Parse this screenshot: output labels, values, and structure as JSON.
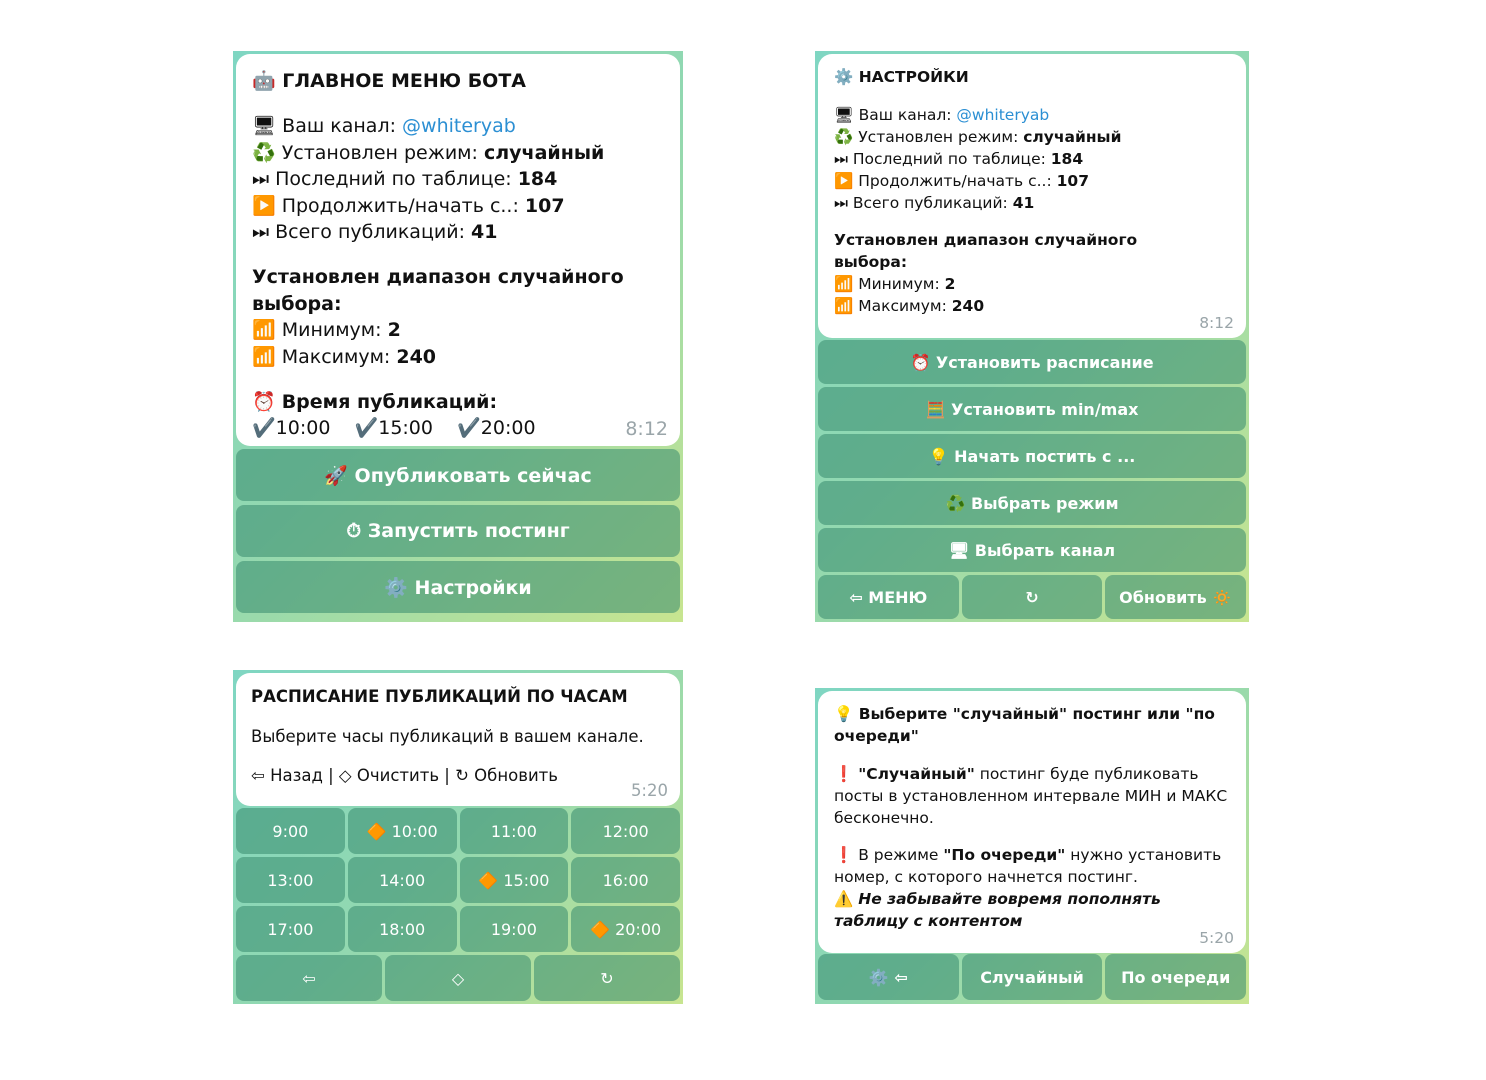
{
  "panels": [
    {
      "title": "🤖 ГЛАВНОЕ МЕНЮ БОТА",
      "blocks": [
        [
          [
            "🖥 Ваш канал: ",
            {
              "a": "@whiteryab"
            }
          ],
          [
            "♻️ Установлен режим: ",
            {
              "b": "случайный"
            }
          ],
          [
            "⏭ Последний по таблице: ",
            {
              "b": "184"
            }
          ],
          [
            "▶️ Продолжить/начать с..: ",
            {
              "b": "107"
            }
          ],
          [
            "⏭ Всего публикаций: ",
            {
              "b": "41"
            }
          ]
        ],
        [
          [
            {
              "b": "Установлен диапазон случайного выбора:"
            }
          ],
          [
            "📶 Минимум: ",
            {
              "b": "2"
            }
          ],
          [
            "📶 Максимум: ",
            {
              "b": "240"
            }
          ]
        ],
        [
          [
            "⏰ ",
            {
              "b": "Время публикаций:"
            }
          ],
          [
            "✔️10:00    ✔️15:00    ✔️20:00"
          ]
        ]
      ],
      "time": "8:12",
      "buttons": [
        [
          "🚀 Опубликовать сейчас"
        ],
        [
          "⏱ Запустить постинг"
        ],
        [
          "⚙️ Настройки"
        ]
      ]
    },
    {
      "title": "⚙️ НАСТРОЙКИ",
      "blocks": [
        [
          [
            "🖥 Ваш канал: ",
            {
              "a": "@whiteryab"
            }
          ],
          [
            "♻️ Установлен режим: ",
            {
              "b": "случайный"
            }
          ],
          [
            "⏭ Последний по таблице: ",
            {
              "b": "184"
            }
          ],
          [
            "▶️ Продолжить/начать с..: ",
            {
              "b": "107"
            }
          ],
          [
            "⏭ Всего публикаций: ",
            {
              "b": "41"
            }
          ]
        ],
        [
          [
            {
              "b": "Установлен диапазон случайного"
            }
          ],
          [
            {
              "b": "выбора:"
            }
          ],
          [
            "📶 Минимум: ",
            {
              "b": "2"
            }
          ],
          [
            "📶 Максимум: ",
            {
              "b": "240"
            }
          ]
        ]
      ],
      "time": "8:12",
      "buttons": [
        [
          "⏰ Установить расписание"
        ],
        [
          "🧮 Установить min/max"
        ],
        [
          "💡 Начать постить с ..."
        ],
        [
          "♻️ Выбрать режим"
        ],
        [
          "🖥 Выбрать канал"
        ],
        [
          "⇦ МЕНЮ",
          "↻",
          "Обновить 🔅"
        ]
      ]
    },
    {
      "title": "РАСПИСАНИЕ ПУБЛИКАЦИЙ ПО ЧАСАМ",
      "blocks": [
        [
          [
            "Выберите часы публикаций в вашем канале."
          ]
        ],
        [
          [
            "⇦ Назад | ◇ Очистить | ↻ Обновить"
          ]
        ]
      ],
      "time": "5:20",
      "buttons": [
        [
          "9:00",
          "🔶 10:00",
          "11:00",
          "12:00"
        ],
        [
          "13:00",
          "14:00",
          "🔶 15:00",
          "16:00"
        ],
        [
          "17:00",
          "18:00",
          "19:00",
          "🔶 20:00"
        ],
        [
          "⇦",
          "◇",
          "↻"
        ]
      ]
    },
    {
      "title": "💡 Выберите \"случайный\" постинг или \"по очереди\"",
      "blocks": [
        [
          [
            "❗ ",
            {
              "b": "\"Случайный\""
            },
            " постинг буде публиковать посты в установленном интервале МИН и МАКС бесконечно."
          ]
        ],
        [
          [
            "❗ В режиме ",
            {
              "b": "\"По очереди\""
            },
            " нужно установить номер, с которого начнется постинг."
          ],
          [
            "⚠️ ",
            {
              "bi": "Не забывайте вовремя пополнять таблицу с контентом"
            }
          ]
        ]
      ],
      "time": "5:20",
      "buttons": [
        [
          "⚙️ ⇦",
          "Случайный",
          "По очереди"
        ]
      ]
    }
  ]
}
